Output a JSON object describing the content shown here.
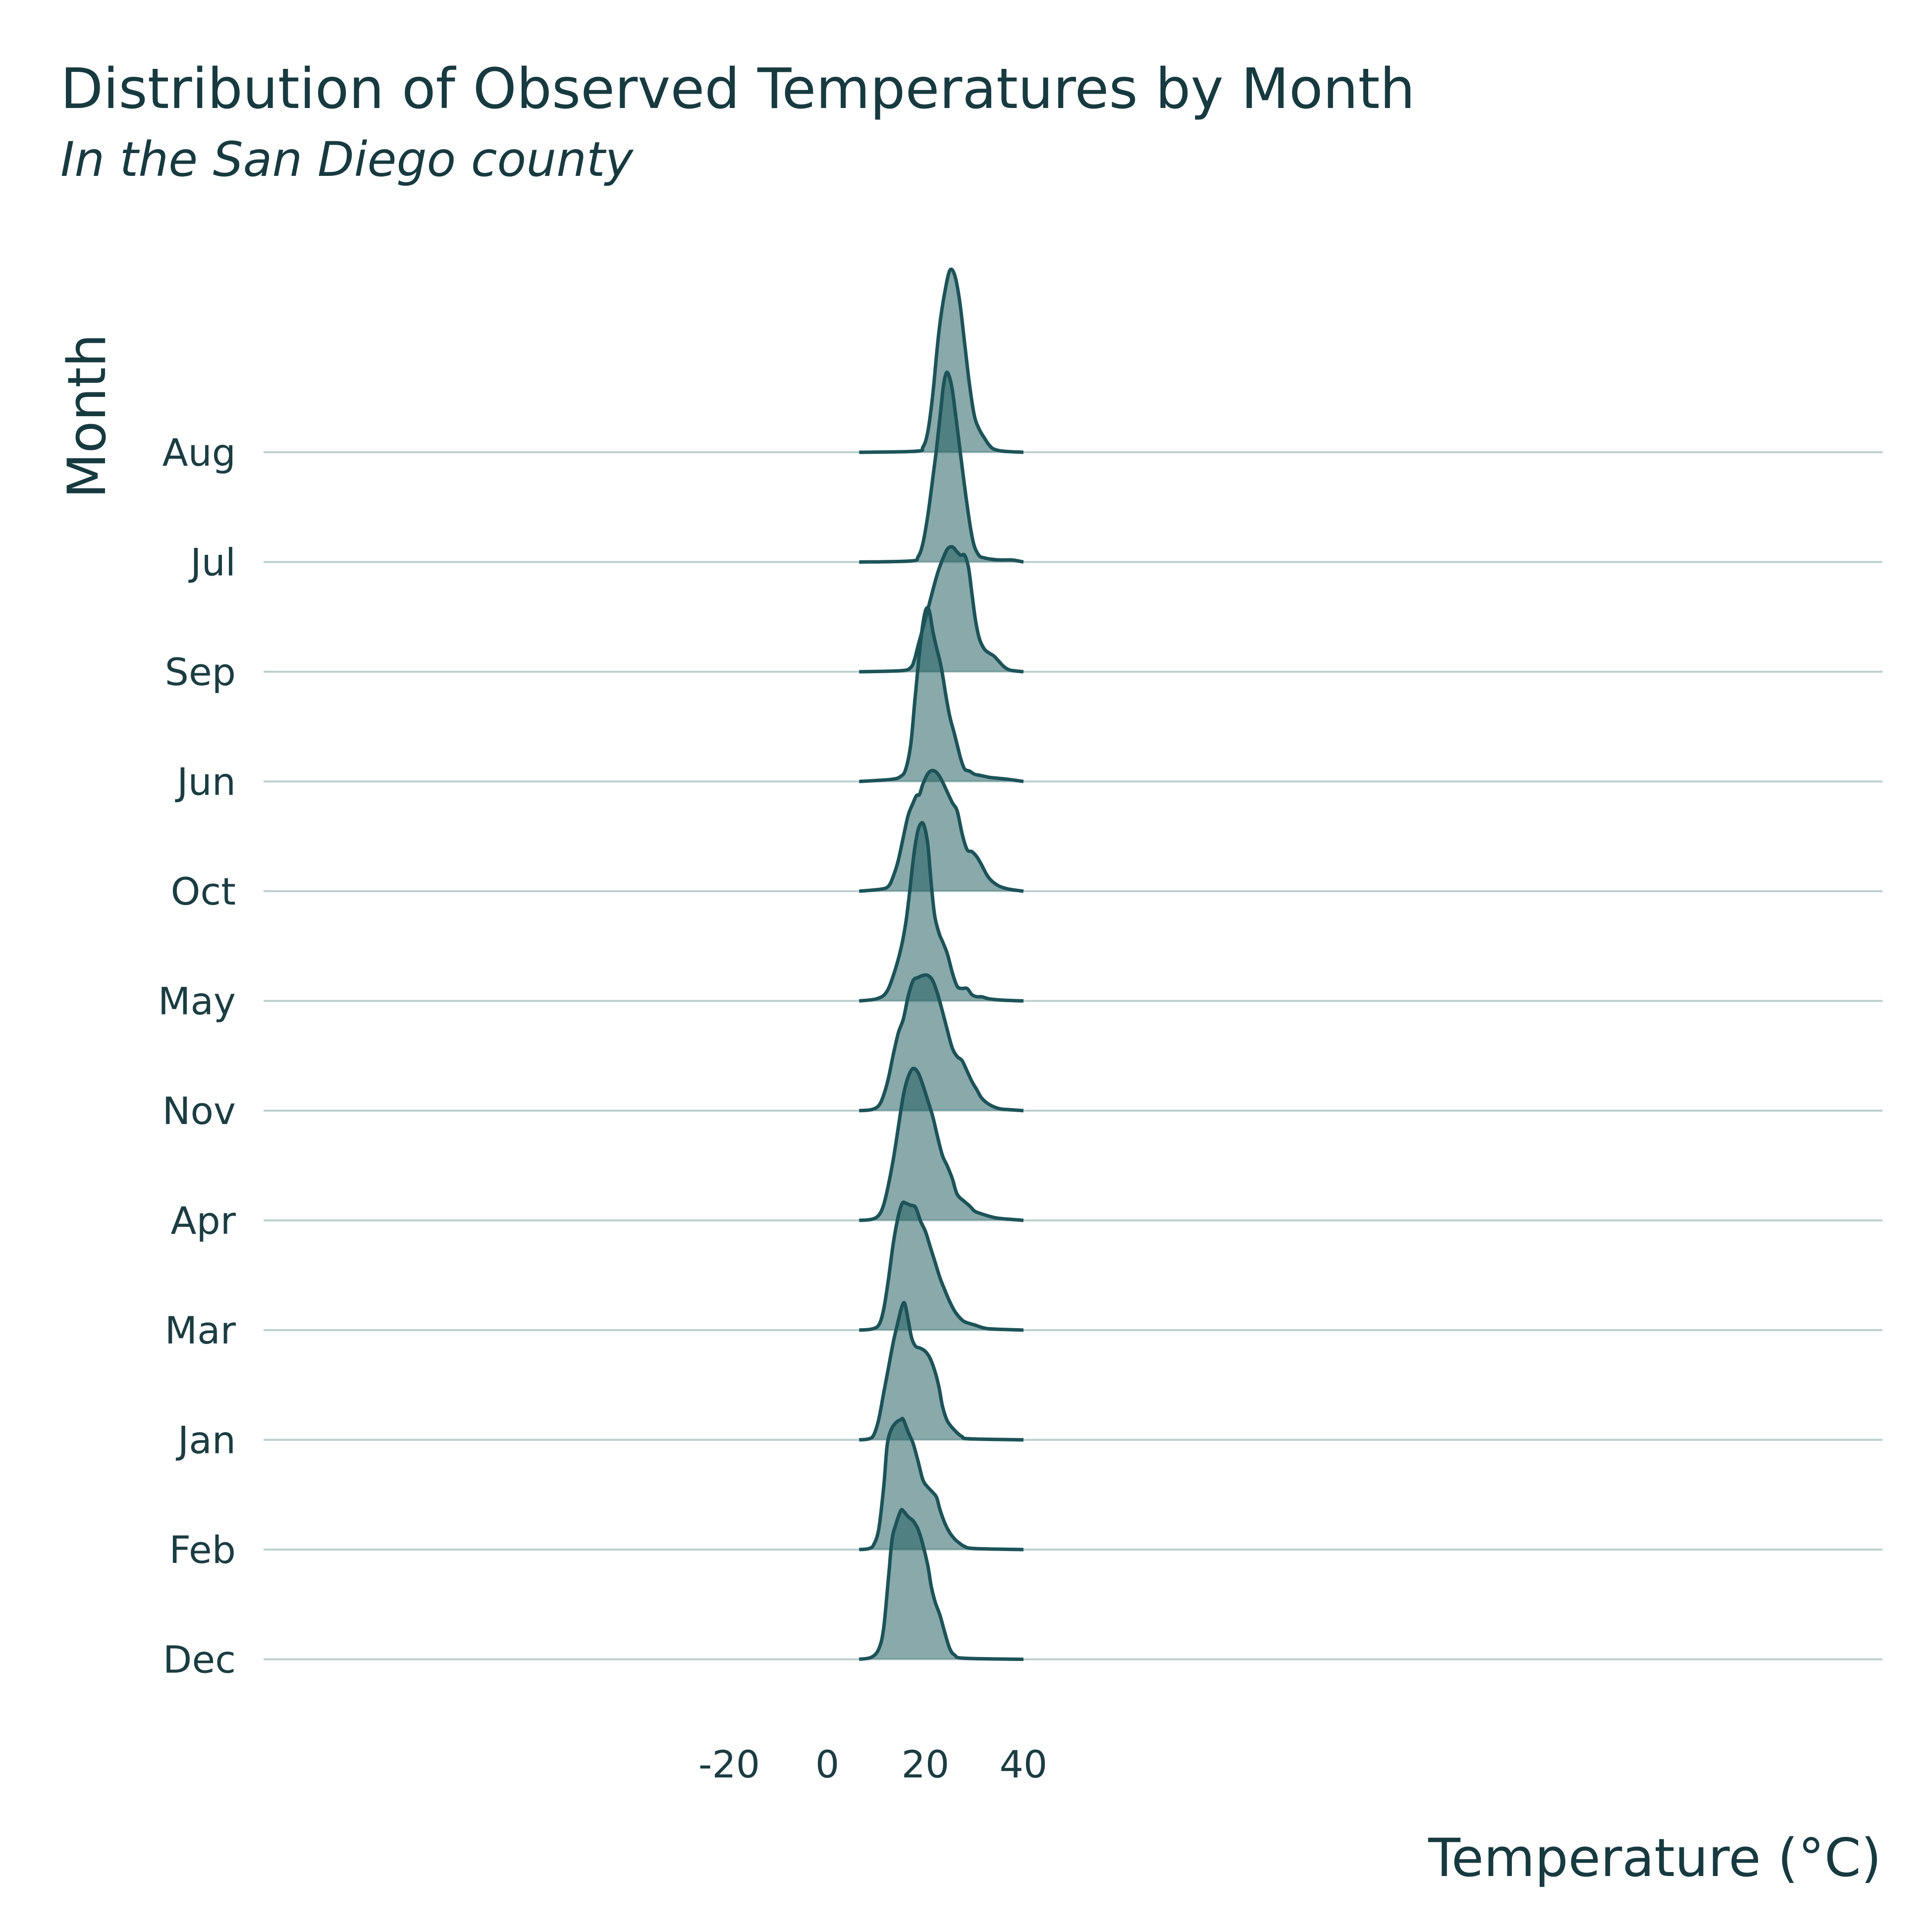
{
  "chart_data": {
    "type": "ridgeline",
    "title": "Distribution of Observed Temperatures by Month",
    "subtitle": "In the San Diego county",
    "xlabel": "Temperature (°C)",
    "ylabel": "Month",
    "xlim": [
      -25,
      43
    ],
    "x_ticks": [
      -20,
      0,
      20,
      40
    ],
    "x_tick_labels": [
      "-20",
      "0",
      "20",
      "40"
    ],
    "density_range": [
      6.5,
      40
    ],
    "grid": "horizontal baselines only",
    "fill_color": "#1c5a5c",
    "fill_opacity": 0.52,
    "line_color": "#1c5358",
    "baseline_color": "#bccfcf",
    "series": [
      {
        "month": "Dec",
        "points": [
          [
            6.5,
            0
          ],
          [
            9,
            0.02
          ],
          [
            10.5,
            0.1
          ],
          [
            11.5,
            0.3
          ],
          [
            12.5,
            0.8
          ],
          [
            13.2,
            1.15
          ],
          [
            14,
            1.3
          ],
          [
            15,
            1.43
          ],
          [
            15.6,
            1.42
          ],
          [
            16.5,
            1.37
          ],
          [
            17.5,
            1.33
          ],
          [
            18.5,
            1.25
          ],
          [
            19.5,
            1.1
          ],
          [
            20.5,
            0.9
          ],
          [
            21.2,
            0.7
          ],
          [
            22,
            0.55
          ],
          [
            23,
            0.42
          ],
          [
            24,
            0.25
          ],
          [
            25,
            0.1
          ],
          [
            26,
            0.04
          ],
          [
            28,
            0.01
          ],
          [
            40,
            0
          ]
        ]
      },
      {
        "month": "Feb",
        "points": [
          [
            6.5,
            0
          ],
          [
            8.5,
            0.01
          ],
          [
            9.5,
            0.05
          ],
          [
            10.5,
            0.2
          ],
          [
            11.5,
            0.6
          ],
          [
            12.2,
            1.0
          ],
          [
            13,
            1.15
          ],
          [
            14,
            1.22
          ],
          [
            15,
            1.25
          ],
          [
            15.5,
            1.25
          ],
          [
            16.5,
            1.13
          ],
          [
            17.5,
            1.02
          ],
          [
            18.5,
            0.85
          ],
          [
            19.5,
            0.67
          ],
          [
            20.5,
            0.6
          ],
          [
            21.5,
            0.55
          ],
          [
            22.3,
            0.5
          ],
          [
            23,
            0.38
          ],
          [
            24,
            0.25
          ],
          [
            25,
            0.16
          ],
          [
            26,
            0.1
          ],
          [
            27,
            0.06
          ],
          [
            28,
            0.03
          ],
          [
            30,
            0.01
          ],
          [
            40,
            0
          ]
        ]
      },
      {
        "month": "Jan",
        "points": [
          [
            6.5,
            0
          ],
          [
            8.5,
            0.01
          ],
          [
            9.5,
            0.05
          ],
          [
            10.5,
            0.2
          ],
          [
            11.5,
            0.45
          ],
          [
            12.5,
            0.7
          ],
          [
            13.5,
            0.95
          ],
          [
            14.5,
            1.15
          ],
          [
            15.2,
            1.28
          ],
          [
            15.8,
            1.31
          ],
          [
            16.5,
            1.15
          ],
          [
            17.2,
            0.98
          ],
          [
            18,
            0.9
          ],
          [
            19,
            0.88
          ],
          [
            20,
            0.85
          ],
          [
            21,
            0.78
          ],
          [
            22,
            0.65
          ],
          [
            22.8,
            0.5
          ],
          [
            23.5,
            0.32
          ],
          [
            24.5,
            0.18
          ],
          [
            26,
            0.09
          ],
          [
            27.5,
            0.03
          ],
          [
            29,
            0.01
          ],
          [
            40,
            0
          ]
        ]
      },
      {
        "month": "Mar",
        "points": [
          [
            6.5,
            0
          ],
          [
            9,
            0.01
          ],
          [
            10.5,
            0.05
          ],
          [
            11.5,
            0.2
          ],
          [
            12.5,
            0.5
          ],
          [
            13.5,
            0.85
          ],
          [
            14.5,
            1.1
          ],
          [
            15.3,
            1.22
          ],
          [
            16,
            1.22
          ],
          [
            17,
            1.2
          ],
          [
            18,
            1.18
          ],
          [
            19,
            1.05
          ],
          [
            20,
            0.95
          ],
          [
            21,
            0.8
          ],
          [
            22,
            0.65
          ],
          [
            23,
            0.5
          ],
          [
            24,
            0.38
          ],
          [
            25,
            0.27
          ],
          [
            26,
            0.18
          ],
          [
            27,
            0.12
          ],
          [
            28,
            0.08
          ],
          [
            30,
            0.05
          ],
          [
            32,
            0.02
          ],
          [
            34,
            0.01
          ],
          [
            40,
            0
          ]
        ]
      },
      {
        "month": "Apr",
        "points": [
          [
            6.5,
            0
          ],
          [
            9,
            0.01
          ],
          [
            10.5,
            0.05
          ],
          [
            11.5,
            0.15
          ],
          [
            12.5,
            0.35
          ],
          [
            13.5,
            0.6
          ],
          [
            14.5,
            0.9
          ],
          [
            15.5,
            1.2
          ],
          [
            16.5,
            1.38
          ],
          [
            17.5,
            1.46
          ],
          [
            18.5,
            1.42
          ],
          [
            19.5,
            1.3
          ],
          [
            20.5,
            1.15
          ],
          [
            21.5,
            1.0
          ],
          [
            22.5,
            0.8
          ],
          [
            23.5,
            0.62
          ],
          [
            24.5,
            0.52
          ],
          [
            25.5,
            0.4
          ],
          [
            26.5,
            0.25
          ],
          [
            28,
            0.18
          ],
          [
            29,
            0.14
          ],
          [
            30,
            0.09
          ],
          [
            31,
            0.07
          ],
          [
            33,
            0.04
          ],
          [
            35,
            0.02
          ],
          [
            40,
            0
          ]
        ]
      },
      {
        "month": "Nov",
        "points": [
          [
            6.5,
            0
          ],
          [
            9,
            0.01
          ],
          [
            10.5,
            0.05
          ],
          [
            11.5,
            0.15
          ],
          [
            12.5,
            0.32
          ],
          [
            13.5,
            0.55
          ],
          [
            14.5,
            0.75
          ],
          [
            15.5,
            0.88
          ],
          [
            16.5,
            1.1
          ],
          [
            17.5,
            1.25
          ],
          [
            18.5,
            1.28
          ],
          [
            19.5,
            1.3
          ],
          [
            20.5,
            1.3
          ],
          [
            21.5,
            1.25
          ],
          [
            22.5,
            1.12
          ],
          [
            23.5,
            0.95
          ],
          [
            24.5,
            0.77
          ],
          [
            25.5,
            0.6
          ],
          [
            26.5,
            0.52
          ],
          [
            27.5,
            0.48
          ],
          [
            28.5,
            0.38
          ],
          [
            29.5,
            0.28
          ],
          [
            30.5,
            0.2
          ],
          [
            31.5,
            0.12
          ],
          [
            33,
            0.06
          ],
          [
            35,
            0.02
          ],
          [
            37,
            0.01
          ],
          [
            40,
            0
          ]
        ]
      },
      {
        "month": "May",
        "points": [
          [
            6.5,
            0
          ],
          [
            10,
            0.02
          ],
          [
            12,
            0.08
          ],
          [
            13.5,
            0.25
          ],
          [
            15,
            0.5
          ],
          [
            16,
            0.75
          ],
          [
            16.8,
            1.05
          ],
          [
            17.5,
            1.35
          ],
          [
            18.3,
            1.6
          ],
          [
            19,
            1.7
          ],
          [
            19.7,
            1.69
          ],
          [
            20.5,
            1.5
          ],
          [
            21.2,
            1.12
          ],
          [
            21.9,
            0.82
          ],
          [
            22.8,
            0.65
          ],
          [
            23.5,
            0.57
          ],
          [
            24.5,
            0.45
          ],
          [
            25.5,
            0.27
          ],
          [
            26.5,
            0.14
          ],
          [
            27.5,
            0.12
          ],
          [
            28.5,
            0.12
          ],
          [
            29.5,
            0.06
          ],
          [
            30.5,
            0.04
          ],
          [
            31.5,
            0.04
          ],
          [
            33,
            0.02
          ],
          [
            35,
            0.01
          ],
          [
            37,
            0.005
          ],
          [
            40,
            0
          ]
        ]
      },
      {
        "month": "Oct",
        "points": [
          [
            6.5,
            0
          ],
          [
            11,
            0.02
          ],
          [
            12.5,
            0.05
          ],
          [
            13.5,
            0.15
          ],
          [
            14.5,
            0.3
          ],
          [
            15.5,
            0.52
          ],
          [
            16.5,
            0.73
          ],
          [
            17.5,
            0.85
          ],
          [
            18.2,
            0.92
          ],
          [
            18.8,
            0.93
          ],
          [
            19.5,
            1.03
          ],
          [
            20.5,
            1.13
          ],
          [
            21.5,
            1.16
          ],
          [
            22.5,
            1.13
          ],
          [
            23.5,
            1.05
          ],
          [
            24.5,
            0.95
          ],
          [
            25.5,
            0.85
          ],
          [
            26.5,
            0.77
          ],
          [
            27.5,
            0.55
          ],
          [
            28.5,
            0.4
          ],
          [
            29.5,
            0.38
          ],
          [
            30.5,
            0.33
          ],
          [
            31.5,
            0.25
          ],
          [
            32.5,
            0.16
          ],
          [
            33.5,
            0.1
          ],
          [
            35,
            0.05
          ],
          [
            37,
            0.02
          ],
          [
            40,
            0
          ]
        ]
      },
      {
        "month": "Jun",
        "points": [
          [
            6.5,
            0
          ],
          [
            13,
            0.02
          ],
          [
            15,
            0.05
          ],
          [
            16,
            0.12
          ],
          [
            17,
            0.35
          ],
          [
            17.8,
            0.75
          ],
          [
            18.6,
            1.15
          ],
          [
            19.3,
            1.45
          ],
          [
            19.9,
            1.62
          ],
          [
            20.4,
            1.67
          ],
          [
            20.9,
            1.62
          ],
          [
            21.5,
            1.45
          ],
          [
            22.2,
            1.3
          ],
          [
            23,
            1.15
          ],
          [
            23.6,
            1.0
          ],
          [
            24.2,
            0.82
          ],
          [
            25,
            0.62
          ],
          [
            25.8,
            0.48
          ],
          [
            26.5,
            0.35
          ],
          [
            27.2,
            0.22
          ],
          [
            28,
            0.12
          ],
          [
            29,
            0.1
          ],
          [
            30,
            0.07
          ],
          [
            31,
            0.06
          ],
          [
            32,
            0.05
          ],
          [
            33,
            0.04
          ],
          [
            35,
            0.03
          ],
          [
            37,
            0.02
          ],
          [
            38.5,
            0.01
          ],
          [
            40,
            0
          ]
        ]
      },
      {
        "month": "Sep",
        "points": [
          [
            6.5,
            0
          ],
          [
            15,
            0.01
          ],
          [
            17,
            0.04
          ],
          [
            17.8,
            0.12
          ],
          [
            18.5,
            0.25
          ],
          [
            19.5,
            0.42
          ],
          [
            20.5,
            0.6
          ],
          [
            21.5,
            0.78
          ],
          [
            22.5,
            0.95
          ],
          [
            23.5,
            1.08
          ],
          [
            24.5,
            1.18
          ],
          [
            25.5,
            1.2
          ],
          [
            26.5,
            1.15
          ],
          [
            27.2,
            1.12
          ],
          [
            28,
            1.12
          ],
          [
            28.8,
            1.0
          ],
          [
            29.5,
            0.75
          ],
          [
            30.2,
            0.5
          ],
          [
            31,
            0.32
          ],
          [
            32,
            0.22
          ],
          [
            33,
            0.18
          ],
          [
            34,
            0.15
          ],
          [
            35,
            0.1
          ],
          [
            36,
            0.05
          ],
          [
            37,
            0.02
          ],
          [
            38,
            0.01
          ],
          [
            40,
            0
          ]
        ]
      },
      {
        "month": "Jul",
        "points": [
          [
            6.5,
            0
          ],
          [
            17,
            0.01
          ],
          [
            18.5,
            0.05
          ],
          [
            19.5,
            0.18
          ],
          [
            20.5,
            0.45
          ],
          [
            21.5,
            0.8
          ],
          [
            22.3,
            1.1
          ],
          [
            23,
            1.4
          ],
          [
            23.7,
            1.7
          ],
          [
            24.3,
            1.82
          ],
          [
            24.9,
            1.78
          ],
          [
            25.5,
            1.65
          ],
          [
            26.2,
            1.4
          ],
          [
            27,
            1.1
          ],
          [
            27.8,
            0.8
          ],
          [
            28.5,
            0.55
          ],
          [
            29.3,
            0.3
          ],
          [
            30,
            0.15
          ],
          [
            31,
            0.06
          ],
          [
            32,
            0.04
          ],
          [
            33,
            0.03
          ],
          [
            35,
            0.02
          ],
          [
            37.5,
            0.02
          ],
          [
            39,
            0.01
          ],
          [
            40,
            0
          ]
        ]
      },
      {
        "month": "Aug",
        "points": [
          [
            6.5,
            0
          ],
          [
            18,
            0.01
          ],
          [
            19.5,
            0.05
          ],
          [
            20.5,
            0.2
          ],
          [
            21.5,
            0.55
          ],
          [
            22.3,
            0.95
          ],
          [
            23,
            1.25
          ],
          [
            24,
            1.55
          ],
          [
            25,
            1.75
          ],
          [
            26,
            1.7
          ],
          [
            27,
            1.45
          ],
          [
            28,
            1.05
          ],
          [
            29,
            0.65
          ],
          [
            30,
            0.35
          ],
          [
            31,
            0.22
          ],
          [
            32,
            0.14
          ],
          [
            33,
            0.07
          ],
          [
            34,
            0.03
          ],
          [
            36,
            0.01
          ],
          [
            40,
            0
          ]
        ]
      }
    ]
  }
}
